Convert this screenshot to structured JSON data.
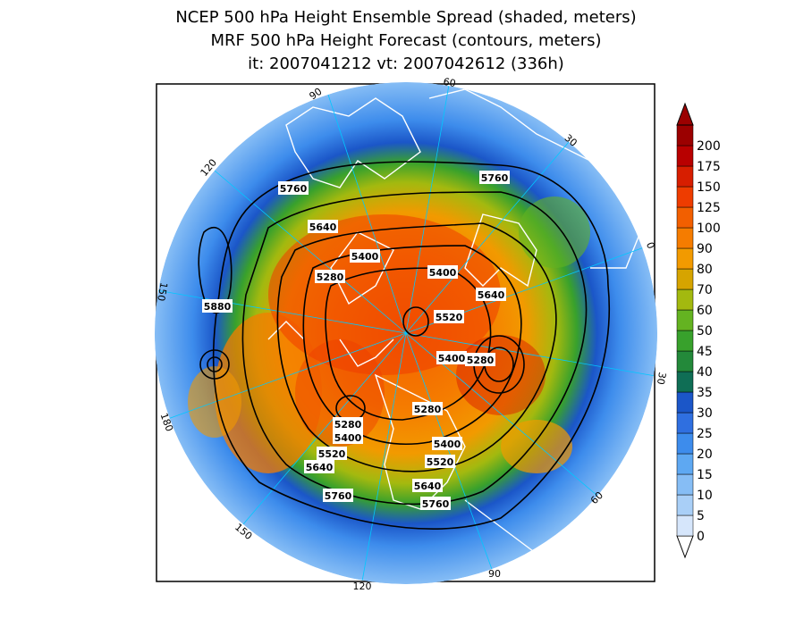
{
  "header": {
    "line1": "NCEP 500 hPa Height Ensemble Spread (shaded, meters)",
    "line2": "MRF 500 hPa Height Forecast (contours, meters)",
    "line3": "it: 2007041212      vt: 2007042612 (336h)"
  },
  "map": {
    "projection": "north-polar-stereographic",
    "longitude_labels": [
      "90",
      "60",
      "30",
      "0",
      "30",
      "60",
      "90",
      "120",
      "150",
      "180",
      "150",
      "120"
    ],
    "contour_labels": [
      "5760",
      "5640",
      "5400",
      "5280",
      "5400",
      "5880",
      "5520",
      "5640",
      "5760",
      "5400",
      "5280",
      "5280",
      "5400",
      "5520",
      "5640",
      "5280",
      "5400",
      "5520",
      "5640",
      "5760",
      "5760"
    ],
    "colors": {
      "coastline": "#ffffff",
      "contour": "#000000",
      "grid_line": "#00c8ff",
      "frame": "#000000"
    }
  },
  "colorbar": {
    "labels": [
      "0",
      "5",
      "10",
      "15",
      "20",
      "25",
      "30",
      "35",
      "40",
      "45",
      "50",
      "60",
      "70",
      "80",
      "90",
      "100",
      "125",
      "150",
      "175",
      "200"
    ],
    "colors": [
      "#d6e6fb",
      "#a9cff7",
      "#86bdf5",
      "#5ea8f2",
      "#3d8cec",
      "#2f6fe0",
      "#1b56c8",
      "#0f6e55",
      "#23893a",
      "#38a12c",
      "#64b321",
      "#a3b90f",
      "#d6a400",
      "#f29a00",
      "#f57c00",
      "#f25f00",
      "#ee3c00",
      "#d71e00",
      "#b80000",
      "#9b0000"
    ]
  }
}
